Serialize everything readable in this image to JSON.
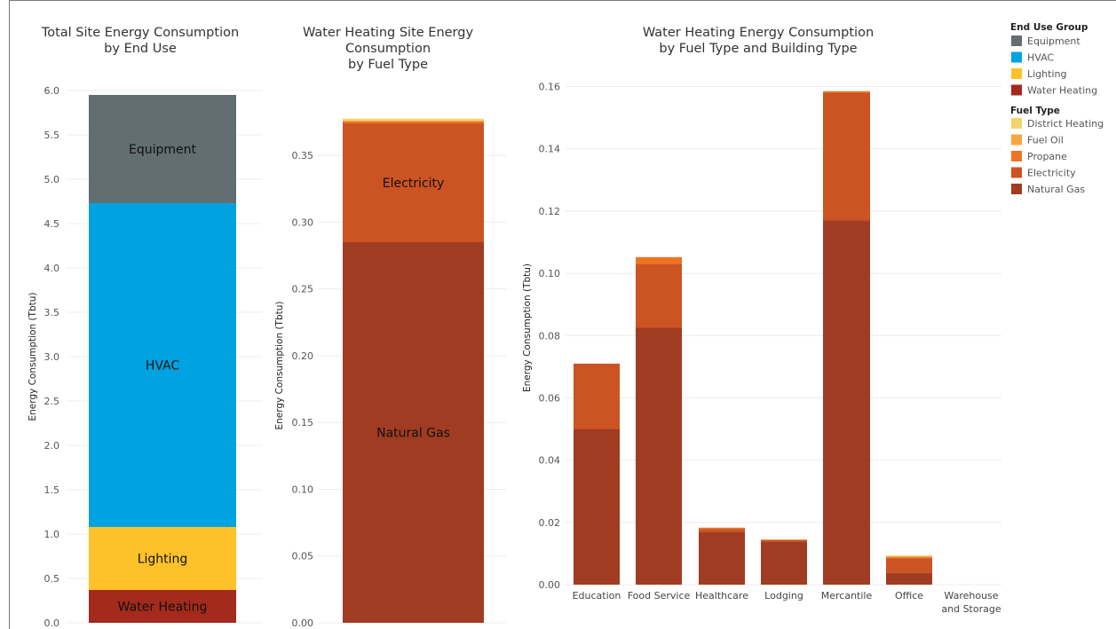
{
  "chart_data": [
    {
      "type": "bar",
      "title": "Total Site Energy Consumption\nby End Use",
      "ylabel": "Energy Consumption (Tbtu)",
      "ylim": [
        0,
        6.0
      ],
      "yticks": [
        "0.0",
        "0.5",
        "1.0",
        "1.5",
        "2.0",
        "2.5",
        "3.0",
        "3.5",
        "4.0",
        "4.5",
        "5.0",
        "5.5",
        "6.0"
      ],
      "stacked": true,
      "categories": [
        ""
      ],
      "series": [
        {
          "name": "Water Heating",
          "values": [
            0.37
          ]
        },
        {
          "name": "Lighting",
          "values": [
            0.71
          ]
        },
        {
          "name": "HVAC",
          "values": [
            3.65
          ]
        },
        {
          "name": "Equipment",
          "values": [
            1.22
          ]
        }
      ]
    },
    {
      "type": "bar",
      "title": "Water Heating Site Energy\nConsumption\nby Fuel Type",
      "ylabel": "Energy Consumption (Tbtu)",
      "ylim": [
        0,
        0.38
      ],
      "yticks": [
        "0.00",
        "0.05",
        "0.10",
        "0.15",
        "0.20",
        "0.25",
        "0.30",
        "0.35"
      ],
      "stacked": true,
      "categories": [
        ""
      ],
      "series": [
        {
          "name": "Natural Gas",
          "values": [
            0.285
          ]
        },
        {
          "name": "Electricity",
          "values": [
            0.089
          ]
        },
        {
          "name": "Propane",
          "values": [
            0.0015
          ]
        },
        {
          "name": "Fuel Oil",
          "values": [
            0.0005
          ]
        },
        {
          "name": "District Heating",
          "values": [
            0.0015
          ]
        }
      ],
      "segment_labels": {
        "Natural Gas": "Natural Gas",
        "Electricity": "Electricity"
      }
    },
    {
      "type": "bar",
      "title": "Water Heating Energy Consumption\nby Fuel Type and Building Type",
      "ylabel": "Energy Consumption (Tbtu)",
      "ylim": [
        0,
        0.165
      ],
      "yticks": [
        "0.00",
        "0.02",
        "0.04",
        "0.06",
        "0.08",
        "0.10",
        "0.12",
        "0.14",
        "0.16"
      ],
      "stacked": true,
      "categories": [
        "Education",
        "Food Service",
        "Healthcare",
        "Lodging",
        "Mercantile",
        "Office",
        "Warehouse\nand Storage"
      ],
      "series": [
        {
          "name": "Natural Gas",
          "values": [
            0.05,
            0.0825,
            0.017,
            0.0138,
            0.117,
            0.0038,
            0
          ]
        },
        {
          "name": "Electricity",
          "values": [
            0.021,
            0.0205,
            0.0008,
            0.0005,
            0.041,
            0.0047,
            0
          ]
        },
        {
          "name": "Propane",
          "values": [
            0.0,
            0.0022,
            0.0005,
            0.0002,
            0.0005,
            0.0004,
            0
          ]
        },
        {
          "name": "Fuel Oil",
          "values": [
            0.0,
            0.0,
            0.0,
            0.0,
            0.0,
            0.0002,
            0
          ]
        },
        {
          "name": "District Heating",
          "values": [
            0.0,
            0.0,
            0.0,
            0.0,
            0.0,
            0.0003,
            0
          ]
        }
      ]
    }
  ],
  "legend": {
    "end_use_title": "End Use Group",
    "end_use": [
      {
        "label": "Equipment",
        "color": "#636e72"
      },
      {
        "label": "HVAC",
        "color": "#00a3e0"
      },
      {
        "label": "Lighting",
        "color": "#fdc12a"
      },
      {
        "label": "Water Heating",
        "color": "#a32a1c"
      }
    ],
    "fuel_title": "Fuel Type",
    "fuel": [
      {
        "label": "District Heating",
        "color": "#f5d36d"
      },
      {
        "label": "Fuel Oil",
        "color": "#f5a73f"
      },
      {
        "label": "Propane",
        "color": "#ee7424"
      },
      {
        "label": "Electricity",
        "color": "#cc5322"
      },
      {
        "label": "Natural Gas",
        "color": "#a03c21"
      }
    ]
  },
  "colors": {
    "Equipment": "#636e72",
    "HVAC": "#00a3e0",
    "Lighting": "#fdc12a",
    "Water Heating": "#a32a1c",
    "Natural Gas": "#a03c21",
    "Electricity": "#cc5322",
    "Propane": "#ee7424",
    "Fuel Oil": "#f5a73f",
    "District Heating": "#f5d36d",
    "grid": "#ececec"
  }
}
